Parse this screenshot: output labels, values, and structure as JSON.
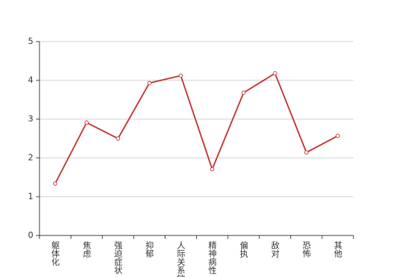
{
  "chart_data": {
    "type": "line",
    "categories": [
      "躯体化",
      "焦虑",
      "强迫症状",
      "抑郁",
      "人际关系敏感",
      "精神病性",
      "偏执",
      "敌对",
      "恐怖",
      "其他"
    ],
    "values": [
      1.34,
      2.91,
      2.5,
      3.93,
      4.12,
      1.71,
      3.68,
      4.18,
      2.14,
      2.57
    ],
    "color": "#c23531",
    "ylim": [
      0,
      5
    ],
    "yticks": [
      0,
      1,
      2,
      3,
      4,
      5
    ],
    "grid": true
  }
}
